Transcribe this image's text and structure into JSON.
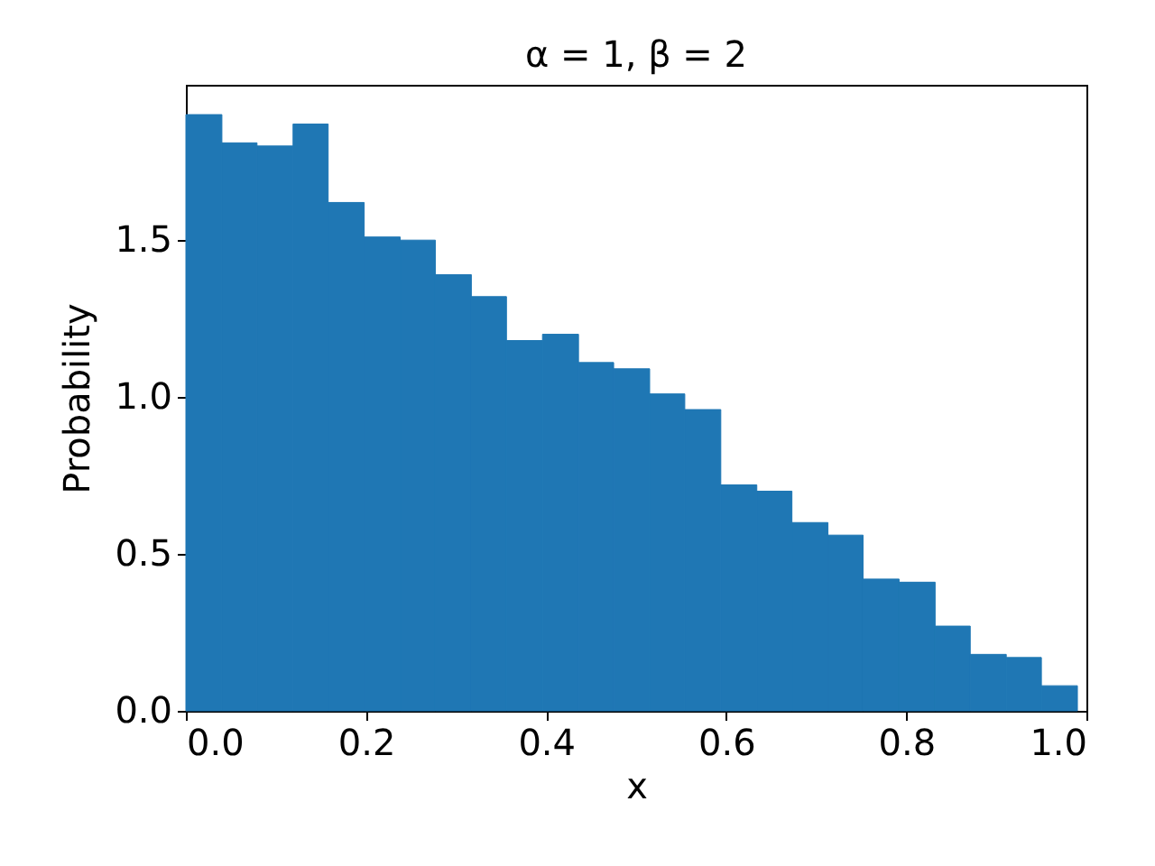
{
  "chart_data": {
    "type": "histogram",
    "title": "α = 1, β = 2",
    "xlabel": "x",
    "ylabel": "Probability",
    "bins": [
      0,
      0.04,
      0.079,
      0.119,
      0.158,
      0.198,
      0.238,
      0.277,
      0.317,
      0.356,
      0.396,
      0.436,
      0.475,
      0.515,
      0.554,
      0.594,
      0.634,
      0.673,
      0.713,
      0.752,
      0.792,
      0.832,
      0.871,
      0.911,
      0.95,
      0.99
    ],
    "values": [
      1.9,
      1.81,
      1.8,
      1.87,
      1.62,
      1.51,
      1.5,
      1.39,
      1.32,
      1.18,
      1.2,
      1.11,
      1.09,
      1.01,
      0.96,
      0.72,
      0.7,
      0.6,
      0.56,
      0.42,
      0.41,
      0.27,
      0.18,
      0.17,
      0.08
    ],
    "color": "#1f77b4",
    "xlim": [
      0,
      1
    ],
    "ylim": [
      0,
      1.995
    ],
    "xticks": [
      {
        "value": 0,
        "label": "0.0"
      },
      {
        "value": 0.2,
        "label": "0.2"
      },
      {
        "value": 0.4,
        "label": "0.4"
      },
      {
        "value": 0.6,
        "label": "0.6"
      },
      {
        "value": 0.8,
        "label": "0.8"
      },
      {
        "value": 1,
        "label": "1.0"
      }
    ],
    "yticks": [
      {
        "value": 0,
        "label": "0.0"
      },
      {
        "value": 0.5,
        "label": "0.5"
      },
      {
        "value": 1,
        "label": "1.0"
      },
      {
        "value": 1.5,
        "label": "1.5"
      }
    ]
  }
}
